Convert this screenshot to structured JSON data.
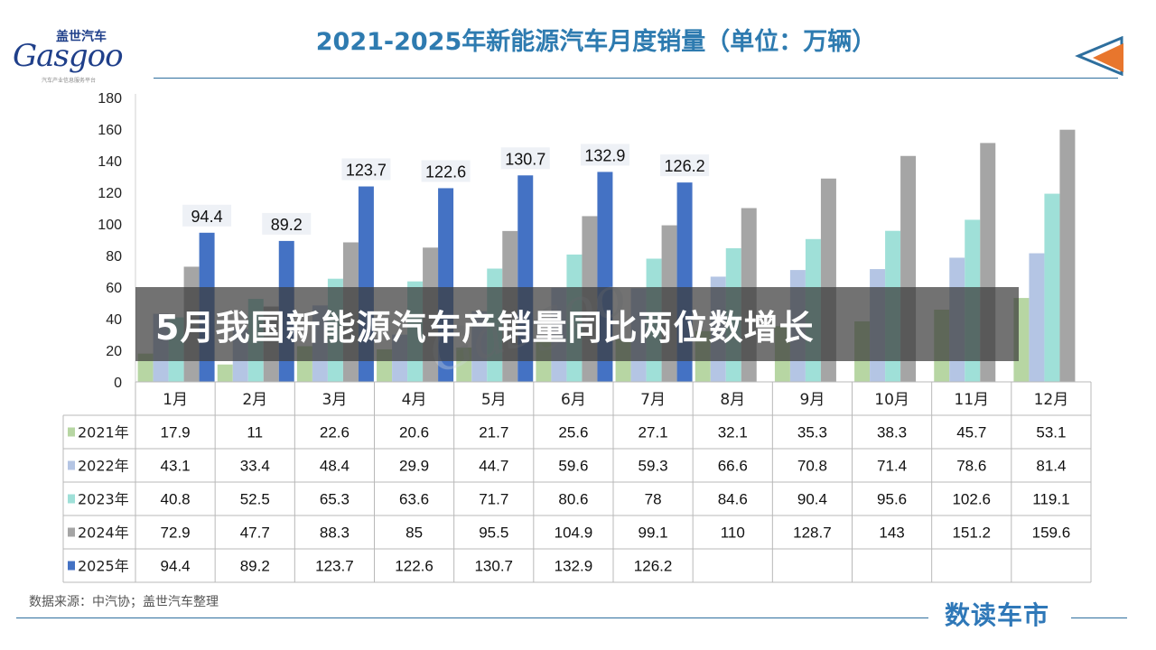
{
  "logo": {
    "cn": "盖世汽车",
    "en": "Gasgoo",
    "sub": "汽车产业信息服务平台"
  },
  "title": "2021-2025年新能源汽车月度销量（单位：万辆）",
  "headline": "5月我国新能源汽车产销量同比两位数增长",
  "source": "数据来源：中汽协；盖世汽车整理",
  "brand": "数读车市",
  "watermark": "Gasgoo",
  "colors": {
    "title": "#2e7bb0",
    "rule": "#2e6f9e",
    "brand": "#2f78b8",
    "arrow": "#e8762d",
    "arrow_outline": "#2e6f9e"
  },
  "chart_data": {
    "type": "bar",
    "categories": [
      "1月",
      "2月",
      "3月",
      "4月",
      "5月",
      "6月",
      "7月",
      "8月",
      "9月",
      "10月",
      "11月",
      "12月"
    ],
    "ylim": [
      0,
      180
    ],
    "yticks": [
      "0",
      "20",
      "40",
      "60",
      "80",
      "100",
      "120",
      "140",
      "160",
      "180"
    ],
    "grid": false,
    "legend": "table-left",
    "series": [
      {
        "name": "2021年",
        "color": "#b7d6a3",
        "values": [
          17.9,
          11,
          22.6,
          20.6,
          21.7,
          25.6,
          27.1,
          32.1,
          35.3,
          38.3,
          45.7,
          53.1
        ]
      },
      {
        "name": "2022年",
        "color": "#b4c5e4",
        "values": [
          43.1,
          33.4,
          48.4,
          29.9,
          44.7,
          59.6,
          59.3,
          66.6,
          70.8,
          71.4,
          78.6,
          81.4
        ]
      },
      {
        "name": "2023年",
        "color": "#9fe0d8",
        "values": [
          40.8,
          52.5,
          65.3,
          63.6,
          71.7,
          80.6,
          78,
          84.6,
          90.4,
          95.6,
          102.6,
          119.1
        ]
      },
      {
        "name": "2024年",
        "color": "#a5a5a5",
        "values": [
          72.9,
          47.7,
          88.3,
          85,
          95.5,
          104.9,
          99.1,
          110,
          128.7,
          143,
          151.2,
          159.6
        ]
      },
      {
        "name": "2025年",
        "color": "#4472c4",
        "values": [
          94.4,
          89.2,
          123.7,
          122.6,
          130.7,
          132.9,
          126.2,
          null,
          null,
          null,
          null,
          null
        ]
      }
    ],
    "data_labels": {
      "series": "2025年",
      "values": [
        "94.4",
        "89.2",
        "123.7",
        "122.6",
        "130.7",
        "132.9",
        "126.2"
      ]
    },
    "table": {
      "rows": [
        {
          "label": "2021年",
          "cells": [
            "17.9",
            "11",
            "22.6",
            "20.6",
            "21.7",
            "25.6",
            "27.1",
            "32.1",
            "35.3",
            "38.3",
            "45.7",
            "53.1"
          ]
        },
        {
          "label": "2022年",
          "cells": [
            "43.1",
            "33.4",
            "48.4",
            "29.9",
            "44.7",
            "59.6",
            "59.3",
            "66.6",
            "70.8",
            "71.4",
            "78.6",
            "81.4"
          ]
        },
        {
          "label": "2023年",
          "cells": [
            "40.8",
            "52.5",
            "65.3",
            "63.6",
            "71.7",
            "80.6",
            "78",
            "84.6",
            "90.4",
            "95.6",
            "102.6",
            "119.1"
          ]
        },
        {
          "label": "2024年",
          "cells": [
            "72.9",
            "47.7",
            "88.3",
            "85",
            "95.5",
            "104.9",
            "99.1",
            "110",
            "128.7",
            "143",
            "151.2",
            "159.6"
          ]
        },
        {
          "label": "2025年",
          "cells": [
            "94.4",
            "89.2",
            "123.7",
            "122.6",
            "130.7",
            "132.9",
            "126.2",
            "",
            "",
            "",
            "",
            ""
          ]
        }
      ]
    }
  }
}
